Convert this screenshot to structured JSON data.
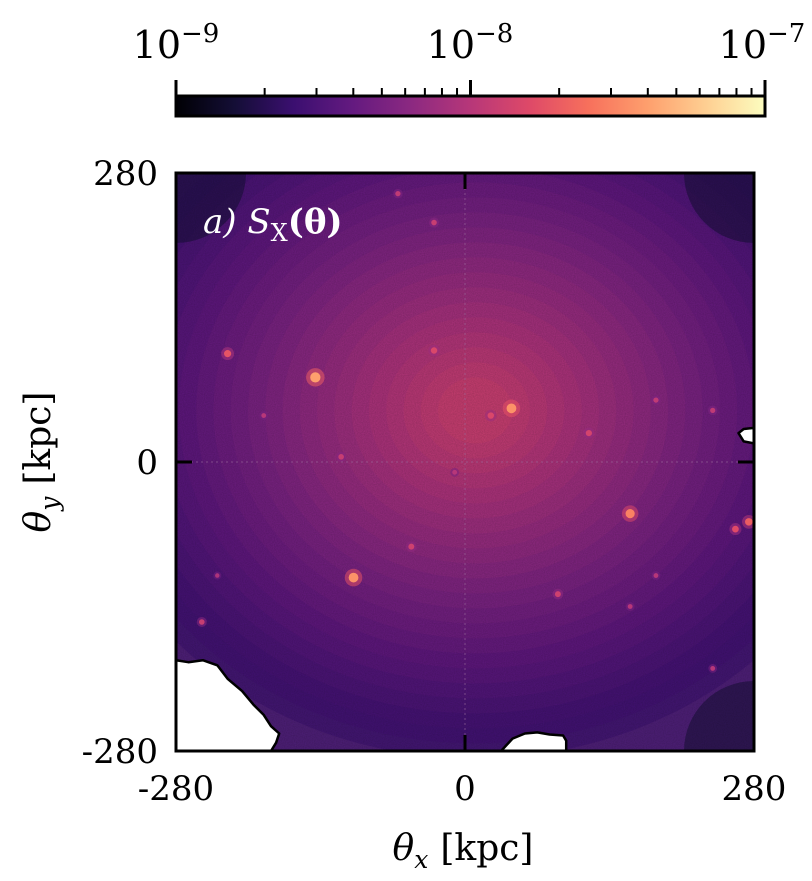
{
  "chart_data": {
    "type": "heatmap",
    "title": "",
    "panel_label": "a) S",
    "panel_label_sub": "X",
    "panel_label_args": "(θ)",
    "xlabel": "θ",
    "xlabel_sub": "x",
    "xlabel_unit": "[kpc]",
    "ylabel": "θ",
    "ylabel_sub": "y",
    "ylabel_unit": "[kpc]",
    "xlim": [
      -280,
      280
    ],
    "ylim": [
      -280,
      280
    ],
    "x_ticks": [
      -280,
      0,
      280
    ],
    "y_ticks": [
      -280,
      0,
      280
    ],
    "x_tick_labels": [
      "-280",
      "0",
      "280"
    ],
    "y_tick_labels": [
      "-280",
      "0",
      "280"
    ],
    "colorbar": {
      "scale": "log",
      "colormap": "magma",
      "range": [
        1e-09,
        1e-07
      ],
      "tick_labels": [
        {
          "base": "10",
          "exp": "−9",
          "value": 1e-09
        },
        {
          "base": "10",
          "exp": "−8",
          "value": 1e-08
        },
        {
          "base": "10",
          "exp": "−7",
          "value": 1e-07
        }
      ]
    },
    "grid": "dotted at 0",
    "center_x_kpc": 10,
    "center_y_kpc": 50,
    "peak_value": 1.3e-08,
    "edge_value": 2.5e-09,
    "point_sources": [
      {
        "x": -145,
        "y": 82,
        "v": 4e-08
      },
      {
        "x": 45,
        "y": 52,
        "v": 3.5e-08
      },
      {
        "x": 160,
        "y": -50,
        "v": 3e-08
      },
      {
        "x": -108,
        "y": -112,
        "v": 3.5e-08
      },
      {
        "x": -230,
        "y": 105,
        "v": 1.8e-08
      },
      {
        "x": -30,
        "y": 108,
        "v": 1.5e-08
      },
      {
        "x": 25,
        "y": 45,
        "v": 1.5e-08
      },
      {
        "x": -120,
        "y": 5,
        "v": 1.2e-08
      },
      {
        "x": 275,
        "y": -58,
        "v": 2e-08
      },
      {
        "x": 262,
        "y": -65,
        "v": 1.6e-08
      },
      {
        "x": 120,
        "y": 28,
        "v": 1.4e-08
      },
      {
        "x": -52,
        "y": -82,
        "v": 1.3e-08
      },
      {
        "x": 90,
        "y": -128,
        "v": 1.3e-08
      },
      {
        "x": -255,
        "y": -155,
        "v": 1.2e-08
      },
      {
        "x": -30,
        "y": 232,
        "v": 1.2e-08
      },
      {
        "x": -65,
        "y": 260,
        "v": 1.1e-08
      },
      {
        "x": 185,
        "y": 60,
        "v": 1.1e-08
      },
      {
        "x": 240,
        "y": 50,
        "v": 1.1e-08
      },
      {
        "x": 185,
        "y": -110,
        "v": 1e-08
      },
      {
        "x": 160,
        "y": -140,
        "v": 1e-08
      },
      {
        "x": -195,
        "y": 45,
        "v": 1e-08
      },
      {
        "x": -10,
        "y": -10,
        "v": 1e-08
      },
      {
        "x": 240,
        "y": -200,
        "v": 1e-08
      },
      {
        "x": -240,
        "y": -110,
        "v": 9e-09
      }
    ],
    "masked_regions": [
      {
        "polygon": [
          [
            -280,
            -192
          ],
          [
            -268,
            -194
          ],
          [
            -254,
            -192
          ],
          [
            -240,
            -197
          ],
          [
            -230,
            -210
          ],
          [
            -216,
            -222
          ],
          [
            -205,
            -235
          ],
          [
            -195,
            -245
          ],
          [
            -188,
            -256
          ],
          [
            -180,
            -263
          ],
          [
            -183,
            -272
          ],
          [
            -188,
            -280
          ],
          [
            -280,
            -280
          ]
        ]
      },
      {
        "polygon": [
          [
            35,
            -280
          ],
          [
            46,
            -268
          ],
          [
            58,
            -263
          ],
          [
            70,
            -262
          ],
          [
            82,
            -264
          ],
          [
            95,
            -265
          ],
          [
            98,
            -270
          ],
          [
            98,
            -280
          ]
        ]
      },
      {
        "polygon": [
          [
            280,
            33
          ],
          [
            270,
            32
          ],
          [
            265,
            28
          ],
          [
            270,
            20
          ],
          [
            280,
            18
          ]
        ]
      }
    ]
  }
}
